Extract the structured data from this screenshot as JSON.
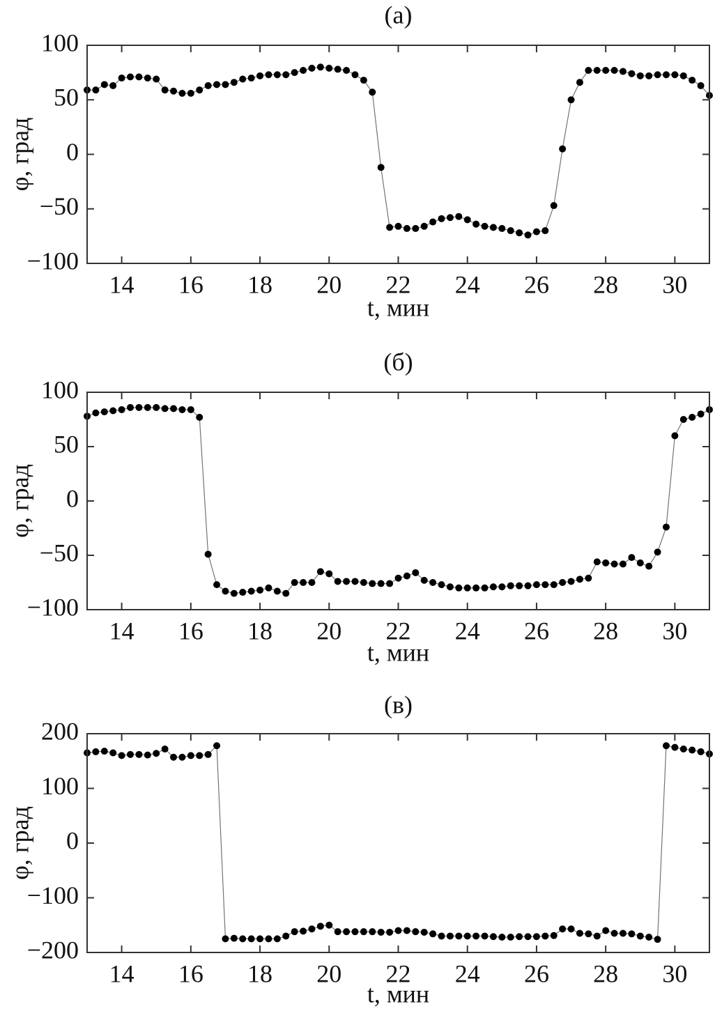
{
  "chart_data": [
    {
      "type": "line",
      "title": "(а)",
      "xlabel": "t, мин",
      "ylabel": "φ, град",
      "color": "#000000",
      "x": [
        13,
        13.25,
        13.5,
        13.75,
        14,
        14.25,
        14.5,
        14.75,
        15,
        15.25,
        15.5,
        15.75,
        16,
        16.25,
        16.5,
        16.75,
        17,
        17.25,
        17.5,
        17.75,
        18,
        18.25,
        18.5,
        18.75,
        19,
        19.25,
        19.5,
        19.75,
        20,
        20.25,
        20.5,
        20.75,
        21,
        21.25,
        21.5,
        21.75,
        22,
        22.25,
        22.5,
        22.75,
        23,
        23.25,
        23.5,
        23.75,
        24,
        24.25,
        24.5,
        24.75,
        25,
        25.25,
        25.5,
        25.75,
        26,
        26.25,
        26.5,
        26.75,
        27,
        27.25,
        27.5,
        27.75,
        28,
        28.25,
        28.5,
        28.75,
        29,
        29.25,
        29.5,
        29.75,
        30,
        30.25,
        30.5,
        30.75,
        31
      ],
      "values": [
        59,
        59,
        64,
        63,
        70,
        71,
        71,
        70,
        69,
        59,
        58,
        56,
        56,
        59,
        63,
        64,
        64,
        66,
        69,
        70,
        72,
        73,
        73,
        73,
        75,
        77,
        79,
        80,
        79,
        78,
        77,
        73,
        68,
        57,
        -12,
        -67,
        -66,
        -68,
        -68,
        -66,
        -62,
        -59,
        -58,
        -57,
        -60,
        -64,
        -66,
        -67,
        -68,
        -70,
        -72,
        -74,
        -71,
        -70,
        -47,
        5,
        50,
        66,
        77,
        77,
        77,
        77,
        76,
        74,
        72,
        72,
        73,
        73,
        73,
        72,
        68,
        63,
        54
      ],
      "xlim": [
        13,
        31
      ],
      "xticks": [
        14,
        16,
        18,
        20,
        22,
        24,
        26,
        28,
        30
      ],
      "ylim": [
        -100,
        100
      ],
      "yticks": [
        {
          "value": -100,
          "label": "−100"
        },
        {
          "value": -50,
          "label": "−50"
        },
        0,
        50,
        100
      ]
    },
    {
      "type": "line",
      "title": "(б)",
      "xlabel": "t, мин",
      "ylabel": "φ, град",
      "color": "#000000",
      "x": [
        13,
        13.25,
        13.5,
        13.75,
        14,
        14.25,
        14.5,
        14.75,
        15,
        15.25,
        15.5,
        15.75,
        16,
        16.25,
        16.5,
        16.75,
        17,
        17.25,
        17.5,
        17.75,
        18,
        18.25,
        18.5,
        18.75,
        19,
        19.25,
        19.5,
        19.75,
        20,
        20.25,
        20.5,
        20.75,
        21,
        21.25,
        21.5,
        21.75,
        22,
        22.25,
        22.5,
        22.75,
        23,
        23.25,
        23.5,
        23.75,
        24,
        24.25,
        24.5,
        24.75,
        25,
        25.25,
        25.5,
        25.75,
        26,
        26.25,
        26.5,
        26.75,
        27,
        27.25,
        27.5,
        27.75,
        28,
        28.25,
        28.5,
        28.75,
        29,
        29.25,
        29.5,
        29.75,
        30,
        30.25,
        30.5,
        30.75,
        31
      ],
      "values": [
        78,
        81,
        82,
        83,
        84,
        86,
        86,
        86,
        86,
        85,
        85,
        84,
        84,
        77,
        -49,
        -77,
        -83,
        -85,
        -84,
        -83,
        -82,
        -80,
        -83,
        -85,
        -75,
        -75,
        -75,
        -65,
        -67,
        -74,
        -74,
        -74,
        -75,
        -76,
        -76,
        -76,
        -71,
        -69,
        -66,
        -73,
        -75,
        -77,
        -79,
        -80,
        -80,
        -80,
        -80,
        -79,
        -79,
        -78,
        -78,
        -78,
        -77,
        -77,
        -77,
        -75,
        -74,
        -72,
        -71,
        -56,
        -57,
        -58,
        -58,
        -52,
        -57,
        -60,
        -47,
        -24,
        60,
        75,
        77,
        80,
        84
      ],
      "xlim": [
        13,
        31
      ],
      "xticks": [
        14,
        16,
        18,
        20,
        22,
        24,
        26,
        28,
        30
      ],
      "ylim": [
        -100,
        100
      ],
      "yticks": [
        {
          "value": -100,
          "label": "−100"
        },
        {
          "value": -50,
          "label": "−50"
        },
        0,
        50,
        100
      ]
    },
    {
      "type": "line",
      "title": "(в)",
      "xlabel": "t, мин",
      "ylabel": "φ, град",
      "color": "#000000",
      "x": [
        13,
        13.25,
        13.5,
        13.75,
        14,
        14.25,
        14.5,
        14.75,
        15,
        15.25,
        15.5,
        15.75,
        16,
        16.25,
        16.5,
        16.75,
        17,
        17.25,
        17.5,
        17.75,
        18,
        18.25,
        18.5,
        18.75,
        19,
        19.25,
        19.5,
        19.75,
        20,
        20.25,
        20.5,
        20.75,
        21,
        21.25,
        21.5,
        21.75,
        22,
        22.25,
        22.5,
        22.75,
        23,
        23.25,
        23.5,
        23.75,
        24,
        24.25,
        24.5,
        24.75,
        25,
        25.25,
        25.5,
        25.75,
        26,
        26.25,
        26.5,
        26.75,
        27,
        27.25,
        27.5,
        27.75,
        28,
        28.25,
        28.5,
        28.75,
        29,
        29.25,
        29.5,
        29.75,
        30,
        30.25,
        30.5,
        30.75,
        31
      ],
      "values": [
        165,
        167,
        168,
        165,
        160,
        162,
        162,
        161,
        164,
        172,
        157,
        157,
        160,
        160,
        162,
        178,
        -175,
        -174,
        -175,
        -175,
        -175,
        -175,
        -175,
        -170,
        -162,
        -161,
        -157,
        -152,
        -150,
        -162,
        -162,
        -162,
        -162,
        -162,
        -163,
        -163,
        -160,
        -160,
        -162,
        -163,
        -166,
        -170,
        -170,
        -170,
        -170,
        -170,
        -170,
        -171,
        -172,
        -172,
        -171,
        -171,
        -171,
        -170,
        -169,
        -157,
        -157,
        -165,
        -166,
        -170,
        -160,
        -165,
        -165,
        -166,
        -170,
        -172,
        -176,
        178,
        175,
        172,
        170,
        167,
        163
      ],
      "xlim": [
        13,
        31
      ],
      "xticks": [
        14,
        16,
        18,
        20,
        22,
        24,
        26,
        28,
        30
      ],
      "ylim": [
        -200,
        200
      ],
      "yticks": [
        {
          "value": -200,
          "label": "−200"
        },
        {
          "value": -100,
          "label": "−100"
        },
        0,
        100,
        200
      ]
    }
  ]
}
